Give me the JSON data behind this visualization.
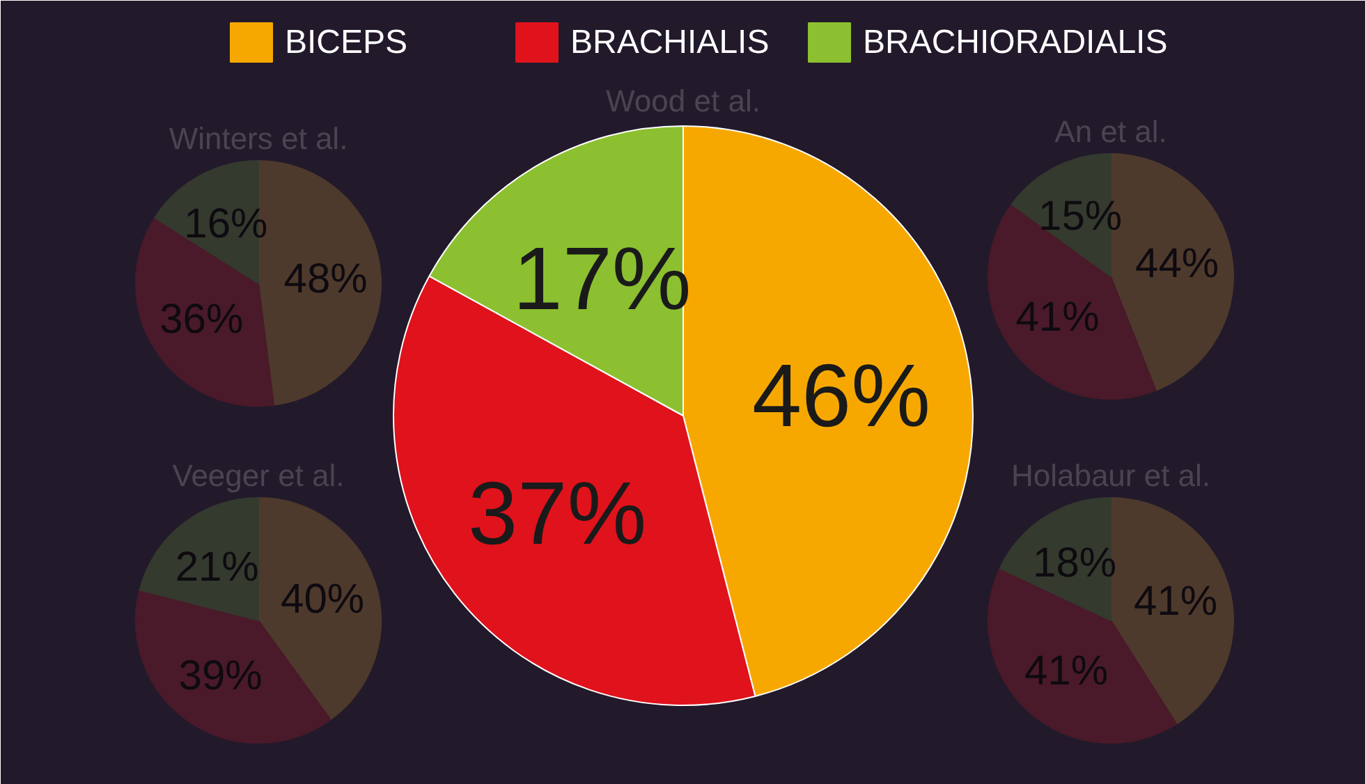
{
  "chart_data": [
    {
      "type": "pie",
      "categories": [
        "BICEPS",
        "BRACHIALIS",
        "BRACHIORADIALIS"
      ],
      "values": [
        46,
        37,
        17
      ],
      "value_labels": [
        "46%",
        "37%",
        "17%"
      ],
      "colors": [
        "#f7a800",
        "#e0121c",
        "#8cc030"
      ],
      "legend": "top"
    },
    {
      "type": "pie",
      "title": "Winters et al.",
      "values": [
        48,
        36,
        16
      ],
      "value_labels": [
        "48%",
        "36%",
        "16%"
      ],
      "colors": [
        "#4e3a2c",
        "#4a1a2a",
        "#343a2e"
      ]
    },
    {
      "type": "other",
      "title": "Wood et al."
    },
    {
      "type": "pie",
      "title": "An et al.",
      "values": [
        44,
        41,
        15
      ],
      "value_labels": [
        "44%",
        "41%",
        "15%"
      ],
      "colors": [
        "#4e3a2c",
        "#4a1a2a",
        "#343a2e"
      ]
    },
    {
      "type": "pie",
      "title": "Veeger et al.",
      "values": [
        40,
        39,
        21
      ],
      "value_labels": [
        "40%",
        "39%",
        "21%"
      ],
      "colors": [
        "#4e3a2c",
        "#4a1a2a",
        "#343a2e"
      ]
    },
    {
      "type": "pie",
      "title": "Holabaur et al.",
      "values": [
        41,
        41,
        18
      ],
      "value_labels": [
        "41%",
        "41%",
        "18%"
      ],
      "colors": [
        "#4e3a2c",
        "#4a1a2a",
        "#343a2e"
      ]
    }
  ]
}
